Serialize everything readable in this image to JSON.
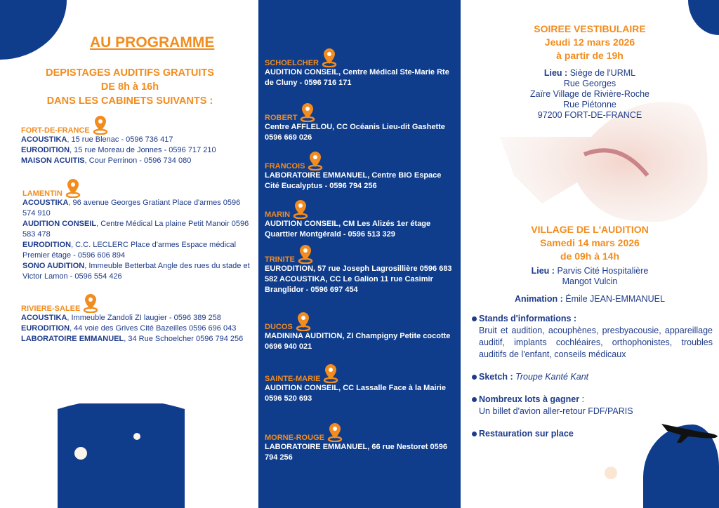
{
  "colors": {
    "orange": "#f28c1e",
    "blue": "#0f3d8c",
    "text": "#1d3b8a"
  },
  "left": {
    "title": "AU PROGRAMME",
    "subtitle": [
      "DEPISTAGES AUDITIFS GRATUITS",
      "DE 8h à 16h",
      "DANS LES CABINETS SUIVANTS :"
    ],
    "cities": [
      {
        "name": "FORT-DE-FRANCE",
        "entries": [
          {
            "name": "ACOUSTIKA",
            "text": ", 15 rue Blenac - 0596 736 417"
          },
          {
            "name": "EURODITION",
            "text": ", 15 rue Moreau de Jonnes - 0596 717 210"
          },
          {
            "name": "MAISON ACUITIS",
            "text": ", Cour Perrinon - 0596 734 080"
          }
        ]
      },
      {
        "name": "LAMENTIN",
        "entries": [
          {
            "name": "ACOUSTIKA",
            "text": ", 96 avenue Georges Gratiant Place d'armes 0596 574 910"
          },
          {
            "name": "AUDITION CONSEIL",
            "text": ", Centre Médical La plaine Petit Manoir 0596 583 478"
          },
          {
            "name": "EURODITION",
            "text": ", C.C. LECLERC Place d'armes Espace médical Premier étage - 0596 606 894"
          },
          {
            "name": "SONO AUDITION",
            "text": ", Immeuble Betterbat Angle des rues du stade et Victor Lamon - 0596 554 426"
          }
        ]
      },
      {
        "name": "RIVIERE-SALEE",
        "entries": [
          {
            "name": "ACOUSTIKA",
            "text": ", Immeuble Zandoli ZI laugier - 0596 389 258"
          },
          {
            "name": "EURODITION",
            "text": ", 44 voie des Grives Cité Bazeilles 0596 696 043"
          },
          {
            "name": "LABORATOIRE EMMANUEL",
            "text": ", 34 Rue Schoelcher 0596 794 256"
          }
        ]
      }
    ]
  },
  "middle": {
    "cities": [
      {
        "name": "SCHOELCHER",
        "text": "AUDITION CONSEIL, Centre Médical Ste-Marie Rte de Cluny - 0596 716 171"
      },
      {
        "name": "ROBERT",
        "text": "Centre AFFLELOU, CC Océanis Lieu-dit Gashette 0596 669 026"
      },
      {
        "name": "FRANCOIS",
        "text": "LABORATOIRE EMMANUEL, Centre BIO Espace Cité Eucalyptus - 0596 794 256"
      },
      {
        "name": "MARIN",
        "text": "AUDITION CONSEIL, CM Les Alizés 1er étage Quarttier Montgérald - 0596 513 329"
      },
      {
        "name": "TRINITE",
        "text": "EURODITION, 57 rue Joseph Lagrosillière 0596 683 582 ACOUSTIKA, CC Le Galion 11 rue Casimir Branglidor - 0596 697 454"
      },
      {
        "name": "DUCOS",
        "text": "MADININA AUDITION, ZI Champigny Petite cocotte 0696 940 021"
      },
      {
        "name": "SAINTE-MARIE",
        "text": "AUDITION CONSEIL, CC Lassalle Face à la Mairie 0596 520 693"
      },
      {
        "name": "MORNE-ROUGE",
        "text": "LABORATOIRE EMMANUEL, 66 rue Nestoret 0596 794 256"
      }
    ]
  },
  "right": {
    "soiree": {
      "title": "SOIREE VESTIBULAIRE",
      "date": "Jeudi 12 mars 2026",
      "time": "à partir de 19h",
      "lieu_label": "Lieu :",
      "lieu": "Siège de l'URML",
      "address": [
        "Rue Georges",
        "Zaïre Village de Rivière-Roche",
        "Rue Piétonne",
        "97200 FORT-DE-FRANCE"
      ]
    },
    "village": {
      "title": "VILLAGE DE L'AUDITION",
      "date": "Samedi 14 mars 2026",
      "time": "de 09h à 14h",
      "lieu_label": "Lieu :",
      "lieu": "Parvis Cité Hospitalière",
      "lieu2": "Mangot Vulcin"
    },
    "animation_label": "Animation :",
    "animation": "Émile JEAN-EMMANUEL",
    "bullets": [
      {
        "label": "Stands d'informations :",
        "text": "Bruit et audition, acouphènes, presbyacousie, appareillage auditif, implants cochléaires, orthophonistes, troubles auditifs de l'enfant, conseils médicaux"
      },
      {
        "label": "Sketch :",
        "text": "Troupe Kanté Kant"
      },
      {
        "label": "Nombreux lots à gagner",
        "text": " :",
        "detail": "Un billet d'avion aller-retour FDF/PARIS"
      },
      {
        "label": "Restauration sur place"
      }
    ]
  }
}
